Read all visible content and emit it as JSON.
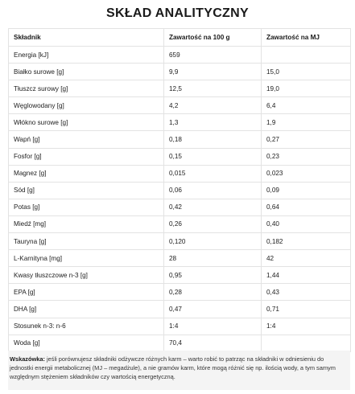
{
  "title": "SKŁAD ANALITYCZNY",
  "table": {
    "headers": [
      "Składnik",
      "Zawartość na 100 g",
      "Zawartość na MJ"
    ],
    "rows": [
      [
        "Energia [kJ]",
        "659",
        ""
      ],
      [
        "Białko surowe [g]",
        "9,9",
        "15,0"
      ],
      [
        "Tłuszcz surowy [g]",
        "12,5",
        "19,0"
      ],
      [
        "Węglowodany [g]",
        "4,2",
        "6,4"
      ],
      [
        "Włókno surowe [g]",
        "1,3",
        "1,9"
      ],
      [
        "Wapń [g]",
        "0,18",
        "0,27"
      ],
      [
        "Fosfor [g]",
        "0,15",
        "0,23"
      ],
      [
        "Magnez [g]",
        "0,015",
        "0,023"
      ],
      [
        "Sód [g]",
        "0,06",
        "0,09"
      ],
      [
        "Potas [g]",
        "0,42",
        "0,64"
      ],
      [
        "Miedź [mg]",
        "0,26",
        "0,40"
      ],
      [
        "Tauryna [g]",
        "0,120",
        "0,182"
      ],
      [
        "L-Karnityna [mg]",
        "28",
        "42"
      ],
      [
        "Kwasy tłuszczowe n-3 [g]",
        "0,95",
        "1,44"
      ],
      [
        "EPA [g]",
        "0,28",
        "0,43"
      ],
      [
        "DHA [g]",
        "0,47",
        "0,71"
      ],
      [
        "Stosunek n-3: n-6",
        "1:4",
        "1:4"
      ],
      [
        "Woda [g]",
        "70,4",
        ""
      ]
    ]
  },
  "note": {
    "label": "Wskazówka:",
    "text": " jeśli porównujesz składniki odżywcze różnych karm – warto robić to patrząc na składniki w odniesieniu do jednostki energii metabolicznej (MJ – megadżule), a nie gramów karm, które mogą różnić się np. ilością wody, a tym samym względnym stężeniem składników czy wartością energetyczną."
  }
}
